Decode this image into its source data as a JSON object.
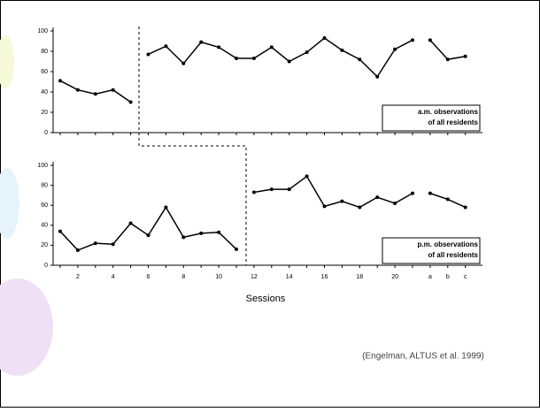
{
  "chart_data": [
    {
      "type": "line",
      "annotation": [
        "a.m. observations",
        "of all residents"
      ],
      "ylim": [
        0,
        100
      ],
      "yticks": [
        0,
        20,
        40,
        60,
        80,
        100
      ],
      "series": [
        {
          "color": "#000000",
          "values": [
            51,
            42,
            38,
            42,
            30,
            null,
            null,
            null,
            null,
            null,
            null,
            null,
            null,
            null,
            null,
            null,
            null,
            null,
            null,
            null,
            null,
            null,
            null,
            null
          ]
        },
        {
          "color": "#000000",
          "values": [
            null,
            null,
            null,
            null,
            null,
            77,
            85,
            68,
            89,
            84,
            73,
            73,
            84,
            70,
            79,
            93,
            81,
            72,
            55,
            82,
            91,
            null,
            null,
            null
          ]
        },
        {
          "color": "#000000",
          "values": [
            null,
            null,
            null,
            null,
            null,
            null,
            null,
            null,
            null,
            null,
            null,
            null,
            null,
            null,
            null,
            null,
            null,
            null,
            null,
            null,
            null,
            91,
            72,
            75
          ]
        }
      ]
    },
    {
      "type": "line",
      "annotation": [
        "p.m. observations",
        "of all residents"
      ],
      "x_label": "Sessions",
      "categories": [
        null,
        "2",
        null,
        "4",
        null,
        "6",
        null,
        "8",
        null,
        "10",
        null,
        "12",
        null,
        "14",
        null,
        "16",
        null,
        "18",
        null,
        "20",
        null,
        "a",
        "b",
        "c"
      ],
      "ylim": [
        0,
        100
      ],
      "yticks": [
        0,
        20,
        40,
        60,
        80,
        100
      ],
      "series": [
        {
          "color": "#000000",
          "values": [
            34,
            15,
            22,
            21,
            42,
            30,
            58,
            28,
            32,
            33,
            16,
            null,
            null,
            null,
            null,
            null,
            null,
            null,
            null,
            null,
            null,
            null,
            null,
            null
          ]
        },
        {
          "color": "#000000",
          "values": [
            null,
            null,
            null,
            null,
            null,
            null,
            null,
            null,
            null,
            null,
            null,
            73,
            76,
            76,
            89,
            59,
            64,
            58,
            68,
            62,
            72,
            null,
            null,
            null
          ]
        },
        {
          "color": "#000000",
          "values": [
            null,
            null,
            null,
            null,
            null,
            null,
            null,
            null,
            null,
            null,
            null,
            null,
            null,
            null,
            null,
            null,
            null,
            null,
            null,
            null,
            null,
            72,
            66,
            58
          ]
        }
      ]
    }
  ],
  "citation": "(Engelman, ALTUS et al. 1999)"
}
